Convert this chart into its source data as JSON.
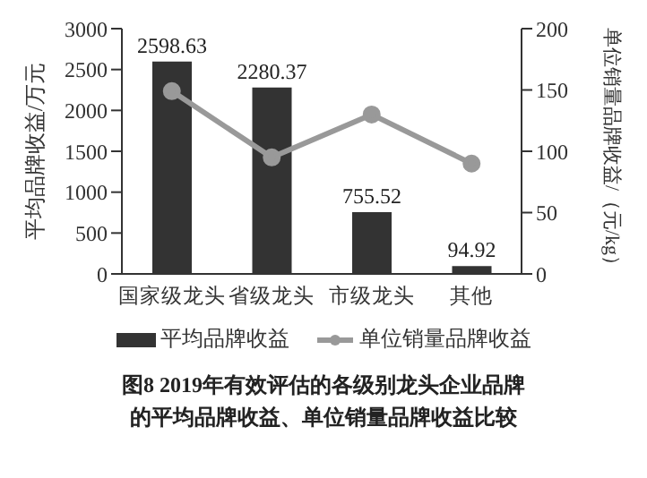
{
  "chart_data": {
    "type": "bar",
    "title": "图8  2019年有效评估的各级别龙头企业品牌的平均品牌收益、单位销量品牌收益比较",
    "ylabel": "平均品牌收益/万元",
    "y2label": "单位销量品牌收益/（元/kg）",
    "categories": [
      "国家级龙头",
      "省级龙头",
      "市级龙头",
      "其他"
    ],
    "series": [
      {
        "name": "平均品牌收益",
        "color": "#333333",
        "values": [
          2598.63,
          2280.37,
          755.52,
          94.92
        ],
        "data_labels": true
      },
      {
        "name": "单位销量品牌收益",
        "type": "line",
        "axis": "y2",
        "color": "#999999",
        "marker": "circle",
        "values": [
          149,
          95,
          130,
          90
        ]
      }
    ],
    "ylim": [
      0,
      3000
    ],
    "yticks": [
      0,
      500,
      1000,
      1500,
      2000,
      2500,
      3000
    ],
    "y2lim": [
      0,
      200
    ],
    "y2ticks": [
      0,
      50,
      100,
      150,
      200
    ],
    "grid": false,
    "legend": "bottom"
  }
}
